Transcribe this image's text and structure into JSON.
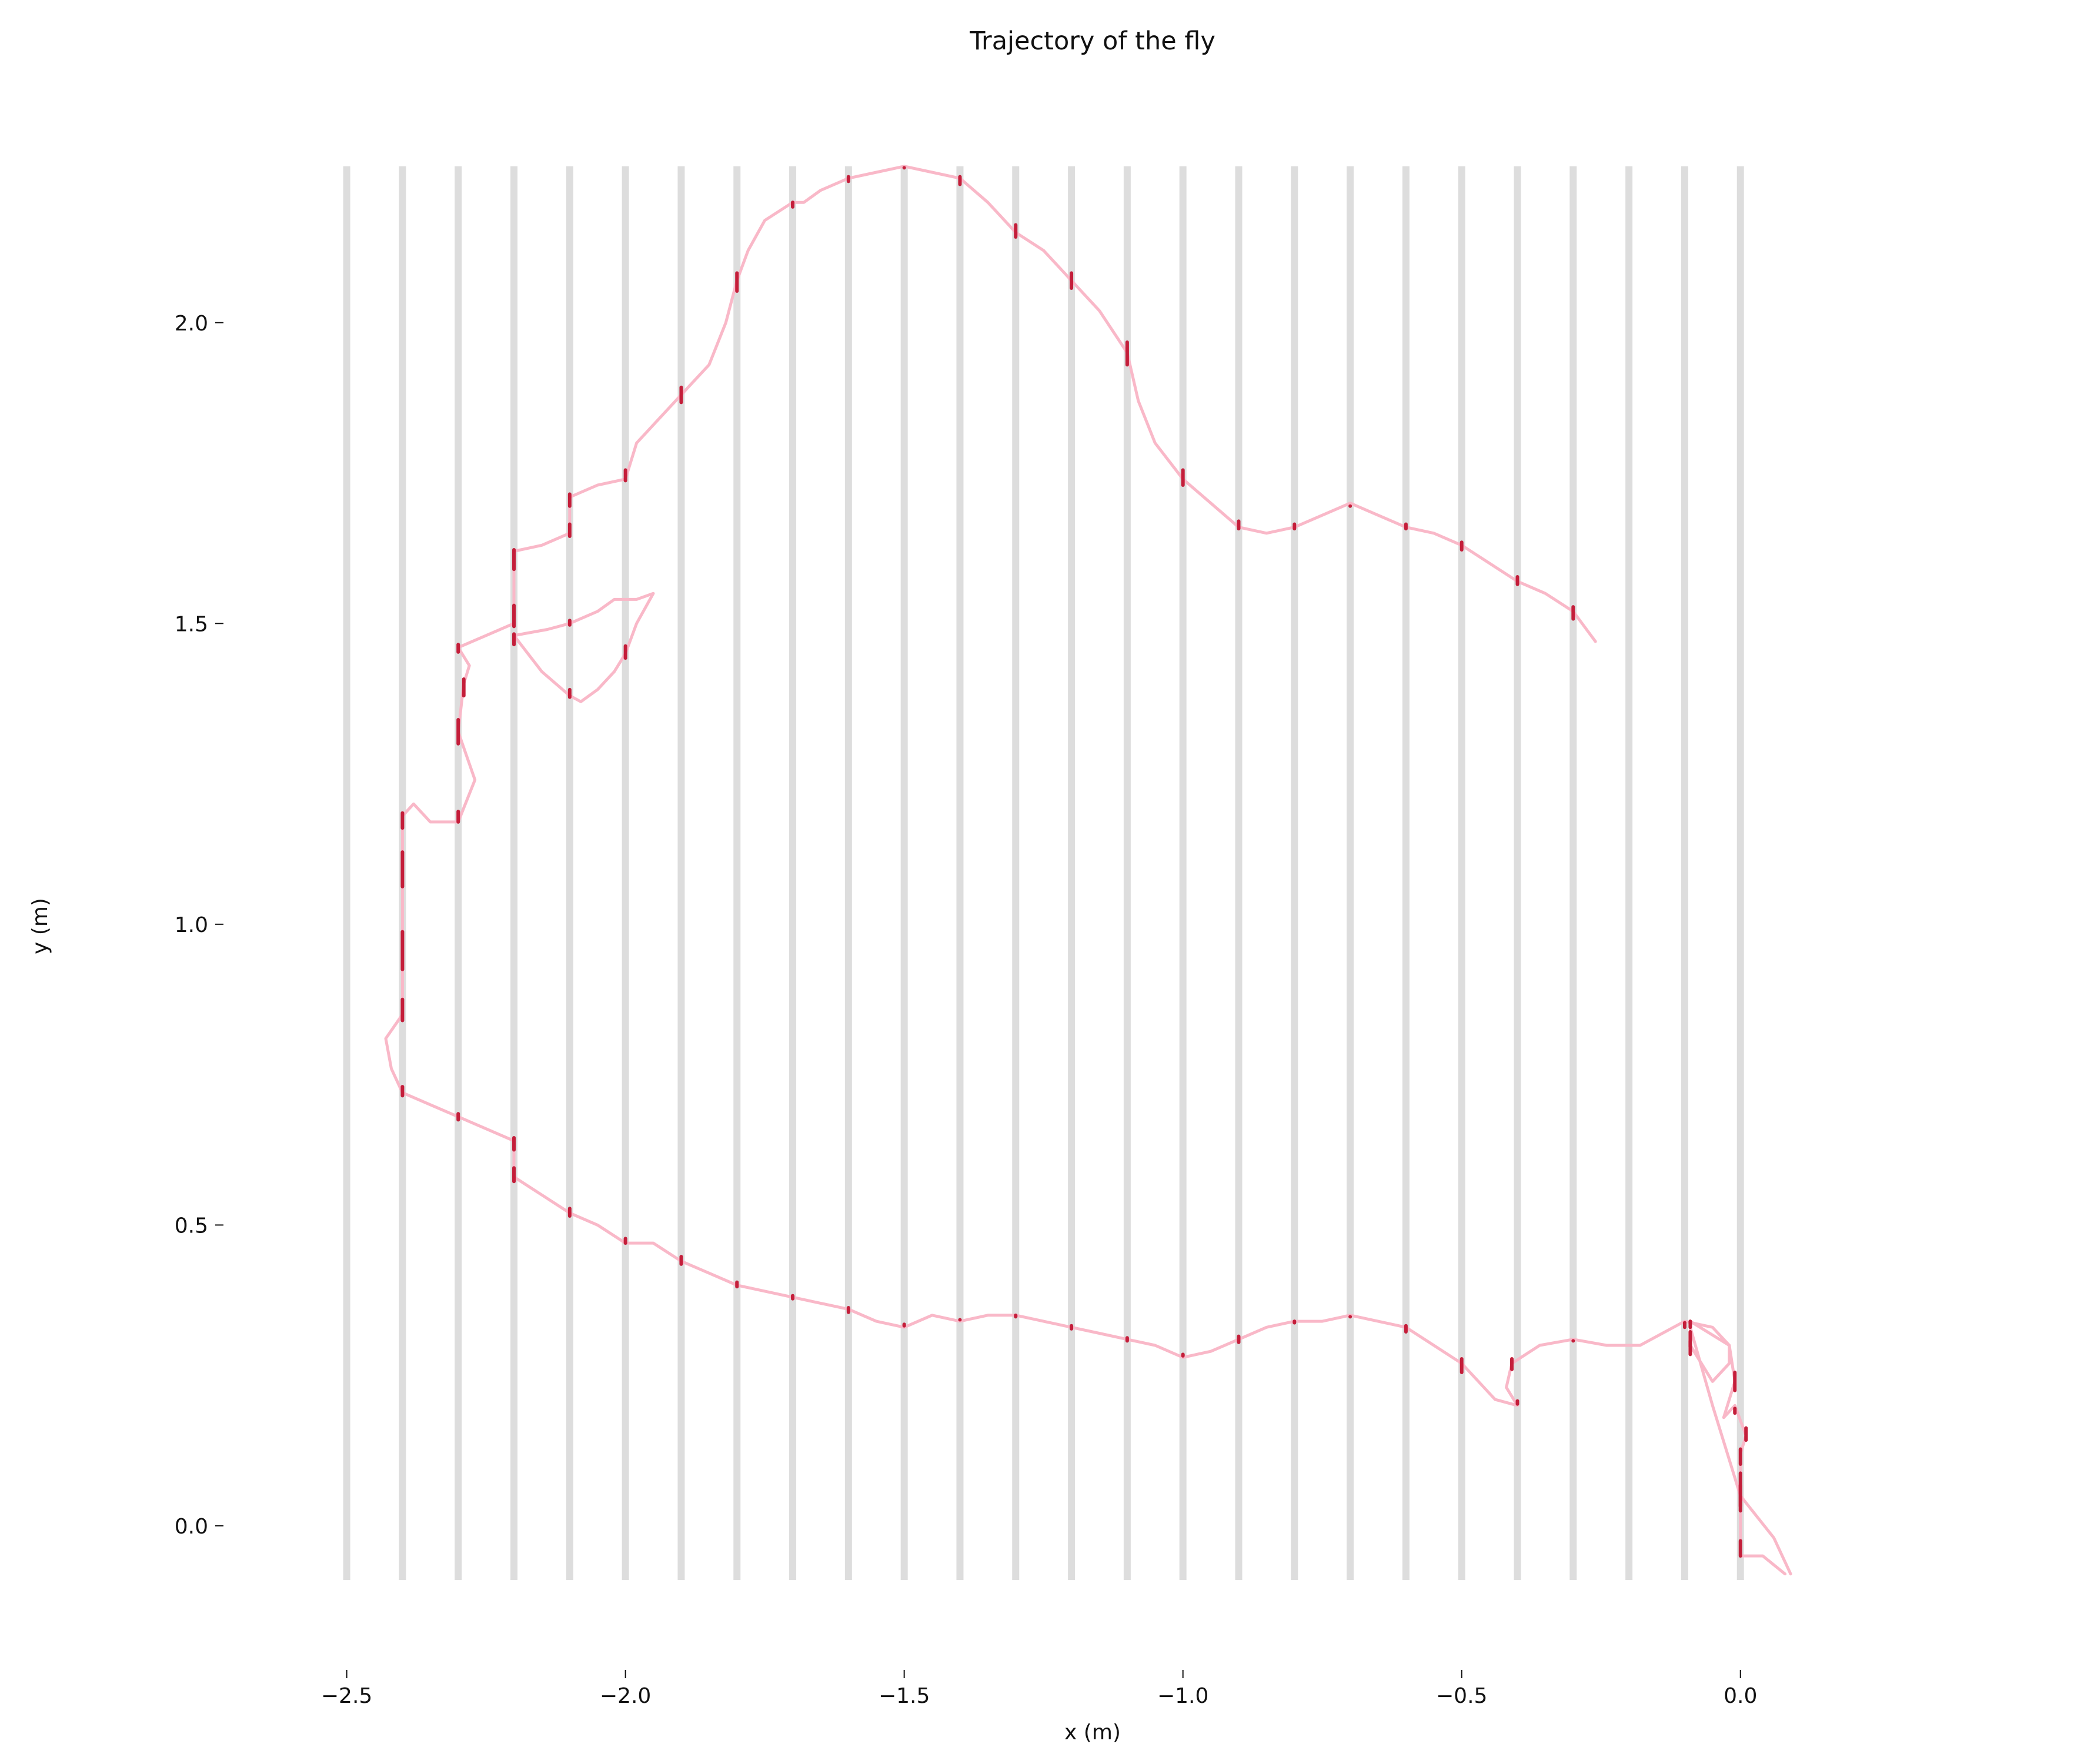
{
  "chart_data": {
    "type": "line",
    "title": "Trajectory of the fly",
    "xlabel": "x (m)",
    "ylabel": "y (m)",
    "xlim": [
      -2.7,
      0.38
    ],
    "ylim": [
      -0.22,
      2.38
    ],
    "grid": false,
    "x_ticks": [
      -2.5,
      -2.0,
      -1.5,
      -1.0,
      -0.5,
      0.0
    ],
    "x_tick_labels": [
      "−2.5",
      "−2.0",
      "−1.5",
      "−1.0",
      "−0.5",
      "0.0"
    ],
    "y_ticks": [
      0.0,
      0.5,
      1.0,
      1.5,
      2.0
    ],
    "y_tick_labels": [
      "0.0",
      "0.5",
      "1.0",
      "1.5",
      "2.0"
    ],
    "vertical_bars": {
      "x": [
        -2.5,
        -2.4,
        -2.3,
        -2.2,
        -2.1,
        -2.0,
        -1.9,
        -1.8,
        -1.7,
        -1.6,
        -1.5,
        -1.4,
        -1.3,
        -1.2,
        -1.1,
        -1.0,
        -0.9,
        -0.8,
        -0.7,
        -0.6,
        -0.5,
        -0.4,
        -0.3,
        -0.2,
        -0.1,
        0.0
      ],
      "y_range": [
        -0.09,
        2.26
      ],
      "color": "#dddddd"
    },
    "series": [
      {
        "color": "#f9b8c8",
        "x": [
          0.08,
          0.04,
          0.0,
          0.0,
          0.0,
          0.01,
          -0.01,
          -0.03,
          -0.01,
          -0.02,
          -0.05,
          -0.1,
          -0.18,
          -0.24,
          -0.3,
          -0.36,
          -0.41,
          -0.42,
          -0.4,
          -0.44,
          -0.5,
          -0.55,
          -0.6,
          -0.65,
          -0.7,
          -0.75,
          -0.8,
          -0.85,
          -0.9,
          -0.95,
          -1.0,
          -1.05,
          -1.1,
          -1.15,
          -1.2,
          -1.25,
          -1.3,
          -1.35,
          -1.4,
          -1.45,
          -1.5,
          -1.55,
          -1.6,
          -1.65,
          -1.7,
          -1.75,
          -1.8,
          -1.85,
          -1.9,
          -1.95,
          -2.0,
          -2.05,
          -2.1,
          -2.15,
          -2.2,
          -2.2,
          -2.25,
          -2.3,
          -2.35,
          -2.4,
          -2.42,
          -2.43,
          -2.4,
          -2.4,
          -2.4,
          -2.4,
          -2.38,
          -2.35,
          -2.3,
          -2.27,
          -2.3,
          -2.29,
          -2.28,
          -2.3,
          -2.25,
          -2.2,
          -2.2,
          -2.15,
          -2.1,
          -2.1,
          -2.05,
          -2.0,
          -1.98,
          -1.95,
          -1.9,
          -1.85,
          -1.82,
          -1.8,
          -1.78,
          -1.75,
          -1.7,
          -1.68,
          -1.65,
          -1.6,
          -1.55,
          -1.5,
          -1.45,
          -1.4,
          -1.35,
          -1.3,
          -1.25,
          -1.2,
          -1.15,
          -1.1,
          -1.08,
          -1.05,
          -1.0,
          -0.95,
          -0.9,
          -0.85,
          -0.8,
          -0.75,
          -0.7,
          -0.65,
          -0.6,
          -0.55,
          -0.5,
          -0.45,
          -0.4,
          -0.35,
          -0.3,
          -0.26
        ],
        "y": [
          -0.08,
          -0.05,
          -0.05,
          0.05,
          0.12,
          0.15,
          0.2,
          0.18,
          0.24,
          0.3,
          0.33,
          0.34,
          0.3,
          0.3,
          0.31,
          0.3,
          0.27,
          0.23,
          0.2,
          0.21,
          0.27,
          0.3,
          0.33,
          0.34,
          0.35,
          0.34,
          0.34,
          0.33,
          0.31,
          0.29,
          0.28,
          0.3,
          0.31,
          0.32,
          0.33,
          0.34,
          0.35,
          0.35,
          0.34,
          0.35,
          0.33,
          0.34,
          0.36,
          0.37,
          0.38,
          0.39,
          0.4,
          0.42,
          0.44,
          0.47,
          0.47,
          0.5,
          0.52,
          0.55,
          0.58,
          0.64,
          0.66,
          0.68,
          0.7,
          0.72,
          0.76,
          0.81,
          0.85,
          0.95,
          1.1,
          1.18,
          1.2,
          1.17,
          1.17,
          1.24,
          1.32,
          1.4,
          1.43,
          1.46,
          1.48,
          1.5,
          1.62,
          1.63,
          1.65,
          1.71,
          1.73,
          1.74,
          1.8,
          1.83,
          1.88,
          1.93,
          2.0,
          2.07,
          2.12,
          2.17,
          2.2,
          2.2,
          2.22,
          2.24,
          2.25,
          2.26,
          2.25,
          2.24,
          2.2,
          2.15,
          2.12,
          2.07,
          2.02,
          1.95,
          1.87,
          1.8,
          1.74,
          1.7,
          1.66,
          1.65,
          1.66,
          1.68,
          1.7,
          1.68,
          1.66,
          1.65,
          1.63,
          1.6,
          1.57,
          1.55,
          1.52,
          1.47
        ]
      },
      {
        "color": "#f9b8c8",
        "x": [
          -2.1,
          -2.15,
          -2.2,
          -2.14,
          -2.1,
          -2.05,
          -2.02,
          -1.98,
          -1.95,
          -1.98,
          -2.0,
          -2.02,
          -2.05,
          -2.08,
          -2.1
        ],
        "y": [
          1.38,
          1.42,
          1.48,
          1.49,
          1.5,
          1.52,
          1.54,
          1.54,
          1.55,
          1.5,
          1.45,
          1.42,
          1.39,
          1.37,
          1.38
        ]
      },
      {
        "color": "#f9b8c8",
        "x": [
          -0.09,
          -0.02,
          -0.02,
          -0.05,
          -0.09,
          -0.09,
          -0.05,
          0.0,
          0.06,
          0.09
        ],
        "y": [
          0.34,
          0.3,
          0.27,
          0.24,
          0.3,
          0.33,
          0.2,
          0.05,
          -0.02,
          -0.08
        ]
      }
    ],
    "highlight_color": "#c41e3a"
  }
}
